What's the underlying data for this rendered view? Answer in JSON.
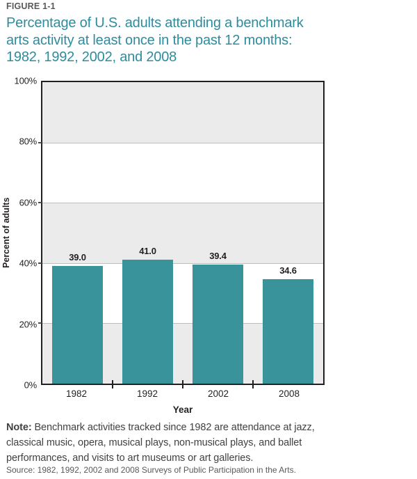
{
  "figure": {
    "label": "FIGURE 1-1",
    "title_lines": [
      "Percentage of U.S. adults attending a benchmark",
      "arts activity at least once in the past 12 months:",
      "1982, 1992, 2002, and 2008"
    ]
  },
  "chart_data": {
    "type": "bar",
    "title": "Percentage of U.S. adults attending a benchmark arts activity at least once in the past 12 months: 1982, 1992, 2002, and 2008",
    "categories": [
      "1982",
      "1992",
      "2002",
      "2008"
    ],
    "values": [
      39.0,
      41.0,
      39.4,
      34.6
    ],
    "value_labels": [
      "39.0",
      "41.0",
      "39.4",
      "34.6"
    ],
    "xlabel": "Year",
    "ylabel": "Percent of adults",
    "ylim": [
      0,
      100
    ],
    "ytick_step": 20,
    "ytick_labels": [
      "0%",
      "20%",
      "40%",
      "60%",
      "80%",
      "100%"
    ],
    "grid": "horizontal-every-20pct",
    "legend": "none",
    "bar_color": "#39939B",
    "band_colors": [
      "#EBEBEB",
      "#FFFFFF"
    ]
  },
  "note": {
    "prefix": "Note:",
    "lines": [
      " Benchmark activities tracked since 1982 are attendance at jazz,",
      "classical music, opera, musical plays, non-musical plays, and ballet",
      "performances, and visits to art museums or art galleries."
    ]
  },
  "source": "Source: 1982, 1992, 2002 and 2008 Surveys of Public Participation in the Arts.",
  "colors": {
    "title_text": "#2D8C9E",
    "figure_label_text": "#58595B",
    "axis_border": "#231F20",
    "gridline": "#BDBDBD",
    "note_text": "#414042",
    "source_text": "#58595B"
  }
}
